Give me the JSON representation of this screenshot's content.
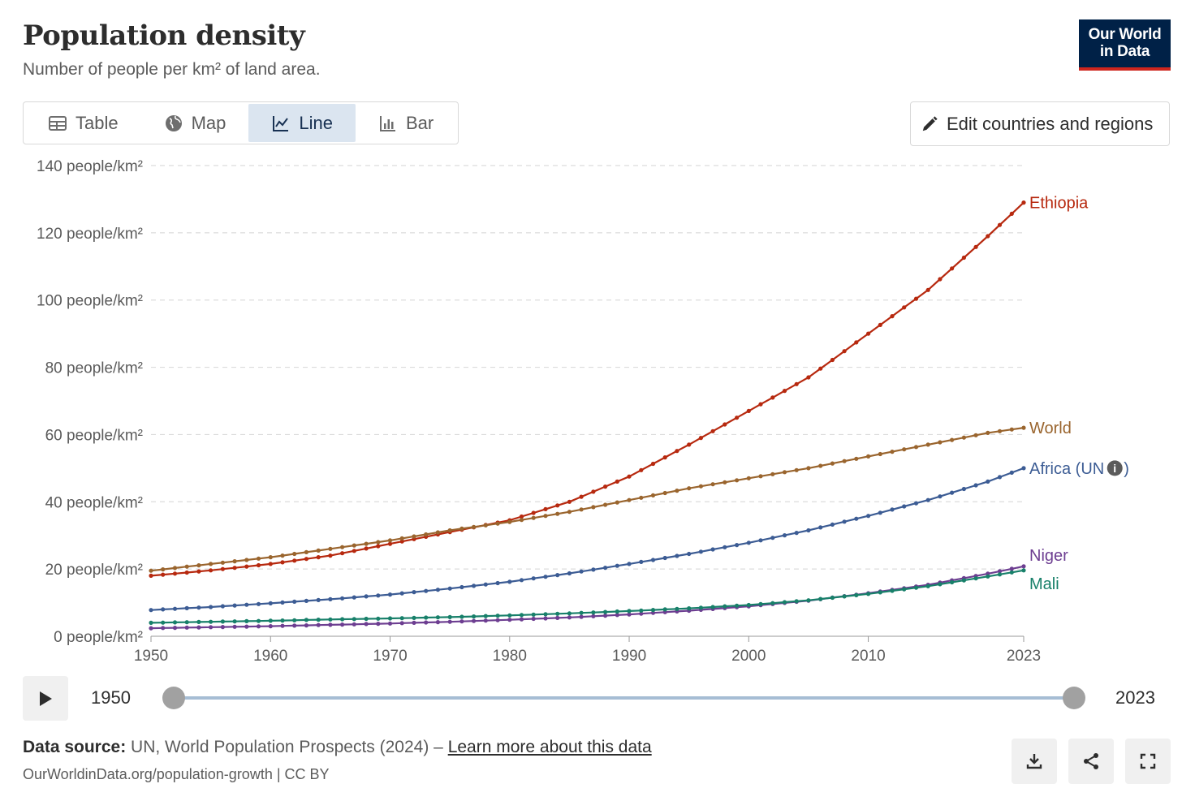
{
  "header": {
    "title": "Population density",
    "subtitle": "Number of people per km² of land area.",
    "logo_line1": "Our World",
    "logo_line2": "in Data"
  },
  "tabs": [
    {
      "label": "Table",
      "icon": "table-icon",
      "active": false
    },
    {
      "label": "Map",
      "icon": "globe-icon",
      "active": false
    },
    {
      "label": "Line",
      "icon": "line-chart-icon",
      "active": true
    },
    {
      "label": "Bar",
      "icon": "bar-chart-icon",
      "active": false
    }
  ],
  "edit_button": {
    "label": "Edit countries and regions",
    "icon": "pencil-icon"
  },
  "timeline": {
    "start": "1950",
    "end": "2023",
    "play_icon": "play-icon"
  },
  "footer": {
    "source_label": "Data source:",
    "source_text": " UN, World Population Prospects (2024) – ",
    "learn_more": "Learn more about this data",
    "url_text": "OurWorldinData.org/population-growth | CC BY",
    "buttons": [
      "download-icon",
      "share-icon",
      "fullscreen-icon"
    ]
  },
  "chart_data": {
    "type": "line",
    "title": "Population density",
    "subtitle": "Number of people per km² of land area.",
    "x_range": [
      1950,
      2023
    ],
    "y_range": [
      0,
      140
    ],
    "y_unit": " people/km²",
    "y_ticks": [
      0,
      20,
      40,
      60,
      80,
      100,
      120,
      140
    ],
    "x_ticks": [
      1950,
      1960,
      1970,
      1980,
      1990,
      2000,
      2010,
      2023
    ],
    "grid": true,
    "legend": "line-end labels",
    "series": [
      {
        "name": "Ethiopia",
        "color": "#b7290f",
        "points": [
          [
            1950,
            18
          ],
          [
            1955,
            19.6
          ],
          [
            1960,
            21.5
          ],
          [
            1965,
            24
          ],
          [
            1970,
            27.5
          ],
          [
            1975,
            31
          ],
          [
            1980,
            34.5
          ],
          [
            1985,
            40
          ],
          [
            1990,
            47.5
          ],
          [
            1995,
            57
          ],
          [
            2000,
            67
          ],
          [
            2005,
            77
          ],
          [
            2010,
            90
          ],
          [
            2015,
            103
          ],
          [
            2020,
            119
          ],
          [
            2023,
            129
          ]
        ]
      },
      {
        "name": "World",
        "color": "#9a652e",
        "points": [
          [
            1950,
            19.5
          ],
          [
            1955,
            21.5
          ],
          [
            1960,
            23.5
          ],
          [
            1965,
            26
          ],
          [
            1970,
            28.5
          ],
          [
            1975,
            31.5
          ],
          [
            1980,
            34
          ],
          [
            1985,
            37
          ],
          [
            1990,
            40.5
          ],
          [
            1995,
            44
          ],
          [
            2000,
            47
          ],
          [
            2005,
            50
          ],
          [
            2010,
            53.5
          ],
          [
            2015,
            57
          ],
          [
            2020,
            60.5
          ],
          [
            2023,
            62
          ]
        ]
      },
      {
        "name": "Africa (UN",
        "color": "#3c5c94",
        "points": [
          [
            1950,
            7.8
          ],
          [
            1955,
            8.7
          ],
          [
            1960,
            9.8
          ],
          [
            1965,
            11
          ],
          [
            1970,
            12.4
          ],
          [
            1975,
            14.2
          ],
          [
            1980,
            16.2
          ],
          [
            1985,
            18.7
          ],
          [
            1990,
            21.5
          ],
          [
            1995,
            24.5
          ],
          [
            2000,
            27.8
          ],
          [
            2005,
            31.5
          ],
          [
            2010,
            35.8
          ],
          [
            2015,
            40.5
          ],
          [
            2020,
            46
          ],
          [
            2023,
            50
          ]
        ]
      },
      {
        "name": "Niger",
        "color": "#6d3e91",
        "points": [
          [
            1950,
            2.4
          ],
          [
            1955,
            2.7
          ],
          [
            1960,
            3.0
          ],
          [
            1965,
            3.4
          ],
          [
            1970,
            3.8
          ],
          [
            1975,
            4.3
          ],
          [
            1980,
            4.9
          ],
          [
            1985,
            5.6
          ],
          [
            1990,
            6.5
          ],
          [
            1995,
            7.6
          ],
          [
            2000,
            8.9
          ],
          [
            2005,
            10.6
          ],
          [
            2010,
            12.8
          ],
          [
            2015,
            15.3
          ],
          [
            2020,
            18.6
          ],
          [
            2023,
            20.8
          ]
        ]
      },
      {
        "name": "Mali",
        "color": "#18806a",
        "points": [
          [
            1950,
            4.0
          ],
          [
            1955,
            4.3
          ],
          [
            1960,
            4.6
          ],
          [
            1965,
            5.0
          ],
          [
            1970,
            5.3
          ],
          [
            1975,
            5.7
          ],
          [
            1980,
            6.2
          ],
          [
            1985,
            6.8
          ],
          [
            1990,
            7.5
          ],
          [
            1995,
            8.3
          ],
          [
            2000,
            9.3
          ],
          [
            2005,
            10.7
          ],
          [
            2010,
            12.6
          ],
          [
            2015,
            14.9
          ],
          [
            2020,
            17.8
          ],
          [
            2023,
            19.6
          ]
        ]
      }
    ]
  }
}
